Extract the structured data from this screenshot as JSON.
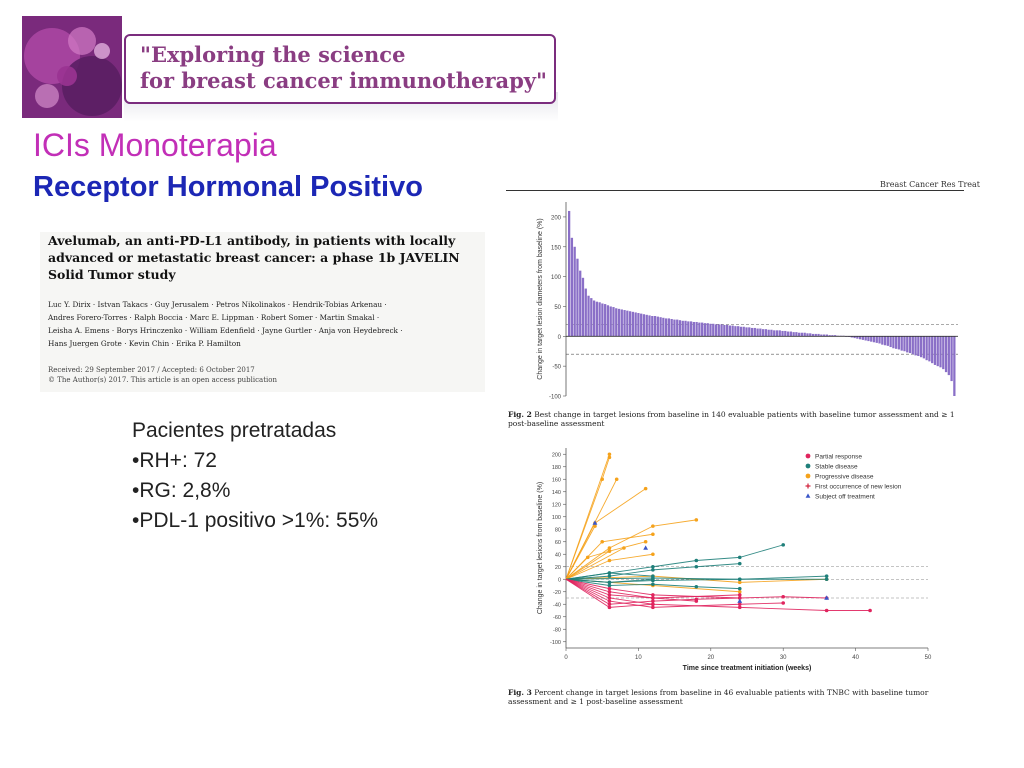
{
  "header": {
    "banner_line1": "\"Exploring the science",
    "banner_line2": "for breast cancer immunotherapy\""
  },
  "slide": {
    "title": "ICIs Monoterapia",
    "subtitle": "Receptor Hormonal Positivo"
  },
  "article": {
    "title": "Avelumab, an anti-PD-L1 antibody, in patients with locally advanced or metastatic breast cancer: a phase 1b JAVELIN Solid Tumor study",
    "authors_line1": "Luc Y. Dirix · Istvan Takacs · Guy Jerusalem · Petros Nikolinakos · Hendrik-Tobias Arkenau ·",
    "authors_line2": "Andres Forero-Torres · Ralph Boccia · Marc E. Lippman · Robert Somer · Martin Smakal ·",
    "authors_line3": "Leisha A. Emens · Borys Hrinczenko · William Edenfield · Jayne Gurtler · Anja von Heydebreck ·",
    "authors_line4": "Hans Juergen Grote · Kevin Chin · Erika P. Hamilton",
    "received": "Received: 29 September 2017 / Accepted: 6 October 2017",
    "copyright": "© The Author(s) 2017. This article is an open access publication",
    "journal": "Breast Cancer Res Treat"
  },
  "bullets": {
    "heading": "Pacientes pretratadas",
    "item1": "•RH+: 72",
    "item2": "•RG: 2,8%",
    "item3": "•PDL-1 positivo >1%: 55%"
  },
  "chart_data": [
    {
      "type": "bar",
      "ylabel": "Change in target lesion diameters from baseline (%)",
      "ylim": [
        -100,
        225
      ],
      "yticks": [
        200,
        150,
        100,
        50,
        0,
        -50,
        -100
      ],
      "reference_lines": [
        20,
        -30
      ],
      "n_bars": 140,
      "series_color": "#8a6fc7",
      "values_sorted_desc": [
        210,
        165,
        150,
        130,
        110,
        98,
        80,
        68,
        64,
        60,
        58,
        57,
        55,
        54,
        52,
        50,
        49,
        47,
        46,
        45,
        44,
        43,
        42,
        41,
        40,
        39,
        38,
        37,
        36,
        35,
        34,
        34,
        33,
        32,
        31,
        30,
        30,
        29,
        28,
        28,
        27,
        26,
        26,
        25,
        25,
        24,
        24,
        23,
        23,
        22,
        22,
        21,
        21,
        20,
        20,
        20,
        19,
        19,
        18,
        18,
        17,
        17,
        16,
        16,
        15,
        15,
        14,
        14,
        13,
        13,
        12,
        12,
        11,
        11,
        10,
        10,
        10,
        9,
        9,
        8,
        8,
        7,
        7,
        6,
        6,
        6,
        5,
        5,
        4,
        4,
        4,
        3,
        3,
        3,
        2,
        2,
        2,
        1,
        1,
        1,
        0,
        -1,
        -2,
        -3,
        -4,
        -5,
        -6,
        -7,
        -8,
        -9,
        -10,
        -11,
        -12,
        -14,
        -15,
        -16,
        -18,
        -20,
        -21,
        -22,
        -24,
        -25,
        -27,
        -28,
        -30,
        -32,
        -33,
        -35,
        -37,
        -40,
        -42,
        -45,
        -48,
        -50,
        -52,
        -55,
        -60,
        -65,
        -75,
        -100
      ],
      "caption_label": "Fig. 2",
      "caption": "Best change in target lesions from baseline in 140 evaluable patients with baseline tumor assessment and ≥ 1 post-baseline assessment"
    },
    {
      "type": "line",
      "xlabel": "Time since treatment initiation (weeks)",
      "ylabel": "Change in target lesions from baseline (%)",
      "xlim": [
        0,
        50
      ],
      "ylim": [
        -110,
        210
      ],
      "xticks": [
        0,
        10,
        20,
        30,
        40,
        50
      ],
      "yticks": [
        200,
        180,
        160,
        140,
        120,
        100,
        80,
        60,
        40,
        20,
        0,
        -20,
        -40,
        -60,
        -80,
        -100
      ],
      "reference_lines": [
        20,
        0,
        -30
      ],
      "legend": [
        {
          "name": "Partial response",
          "color": "#e0245e",
          "marker": "circle"
        },
        {
          "name": "Stable disease",
          "color": "#1f7f7a",
          "marker": "circle"
        },
        {
          "name": "Progressive disease",
          "color": "#f5a21b",
          "marker": "circle"
        },
        {
          "name": "First occurrence of new lesion",
          "color": "#d0203a",
          "marker": "plus"
        },
        {
          "name": "Subject off treatment",
          "color": "#3a56c8",
          "marker": "triangle"
        }
      ],
      "series": [
        {
          "category": "Progressive disease",
          "x": [
            0,
            6
          ],
          "y": [
            0,
            200
          ]
        },
        {
          "category": "Progressive disease",
          "x": [
            0,
            5,
            6
          ],
          "y": [
            0,
            160,
            195
          ]
        },
        {
          "category": "Progressive disease",
          "x": [
            0,
            7
          ],
          "y": [
            0,
            160
          ]
        },
        {
          "category": "Progressive disease",
          "x": [
            0,
            4,
            11
          ],
          "y": [
            0,
            90,
            145
          ]
        },
        {
          "category": "Progressive disease",
          "x": [
            0,
            4
          ],
          "y": [
            0,
            85
          ]
        },
        {
          "category": "Progressive disease",
          "x": [
            0,
            6,
            12,
            18
          ],
          "y": [
            0,
            50,
            85,
            95
          ]
        },
        {
          "category": "Progressive disease",
          "x": [
            0,
            5,
            12
          ],
          "y": [
            0,
            60,
            72
          ]
        },
        {
          "category": "Progressive disease",
          "x": [
            0,
            6,
            11
          ],
          "y": [
            0,
            45,
            60
          ]
        },
        {
          "category": "Progressive disease",
          "x": [
            0,
            8
          ],
          "y": [
            0,
            50
          ]
        },
        {
          "category": "Progressive disease",
          "x": [
            0,
            6,
            12
          ],
          "y": [
            0,
            30,
            40
          ]
        },
        {
          "category": "Progressive disease",
          "x": [
            0,
            3,
            6
          ],
          "y": [
            0,
            35,
            45
          ]
        },
        {
          "category": "Progressive disease",
          "x": [
            0,
            12,
            24,
            36
          ],
          "y": [
            0,
            5,
            -5,
            0
          ]
        },
        {
          "category": "Progressive disease",
          "x": [
            0,
            12,
            24
          ],
          "y": [
            0,
            -10,
            -20
          ]
        },
        {
          "category": "Stable disease",
          "x": [
            0,
            6,
            12,
            18,
            24,
            30
          ],
          "y": [
            0,
            10,
            20,
            30,
            35,
            55
          ]
        },
        {
          "category": "Stable disease",
          "x": [
            0,
            6,
            12,
            18,
            24
          ],
          "y": [
            0,
            5,
            15,
            20,
            25
          ]
        },
        {
          "category": "Stable disease",
          "x": [
            0,
            12,
            24,
            36
          ],
          "y": [
            0,
            2,
            0,
            5
          ]
        },
        {
          "category": "Stable disease",
          "x": [
            0,
            6,
            12,
            24,
            36
          ],
          "y": [
            0,
            -5,
            -2,
            0,
            0
          ]
        },
        {
          "category": "Stable disease",
          "x": [
            0,
            6,
            12,
            18,
            24
          ],
          "y": [
            0,
            -10,
            -8,
            -12,
            -15
          ]
        },
        {
          "category": "Stable disease",
          "x": [
            0,
            6,
            12
          ],
          "y": [
            0,
            10,
            5
          ]
        },
        {
          "category": "Stable disease",
          "x": [
            0,
            6,
            12
          ],
          "y": [
            0,
            -5,
            0
          ]
        },
        {
          "category": "Partial response",
          "x": [
            0,
            6,
            12,
            24,
            36,
            42
          ],
          "y": [
            0,
            -30,
            -40,
            -45,
            -50,
            -50
          ]
        },
        {
          "category": "Partial response",
          "x": [
            0,
            6,
            12,
            24,
            30
          ],
          "y": [
            0,
            -35,
            -45,
            -40,
            -38
          ]
        },
        {
          "category": "Partial response",
          "x": [
            0,
            6,
            12,
            18,
            24
          ],
          "y": [
            0,
            -40,
            -35,
            -32,
            -30
          ]
        },
        {
          "category": "Partial response",
          "x": [
            0,
            6,
            12,
            18
          ],
          "y": [
            0,
            -25,
            -30,
            -35
          ]
        },
        {
          "category": "Partial response",
          "x": [
            0,
            6,
            12
          ],
          "y": [
            0,
            -45,
            -40
          ]
        },
        {
          "category": "Partial response",
          "x": [
            0,
            6,
            12,
            24
          ],
          "y": [
            0,
            -20,
            -30,
            -25
          ]
        },
        {
          "category": "Partial response",
          "x": [
            0,
            6,
            12,
            24,
            30,
            36
          ],
          "y": [
            0,
            -15,
            -25,
            -30,
            -28,
            -30
          ]
        }
      ],
      "off_treatment_points": [
        {
          "x": 4,
          "y": 90
        },
        {
          "x": 11,
          "y": 50
        },
        {
          "x": 24,
          "y": -35
        },
        {
          "x": 36,
          "y": -30
        }
      ],
      "caption_label": "Fig. 3",
      "caption": "Percent change in target lesions from baseline in 46 evaluable patients with TNBC with baseline tumor assessment and ≥ 1 post-baseline assessment"
    }
  ]
}
